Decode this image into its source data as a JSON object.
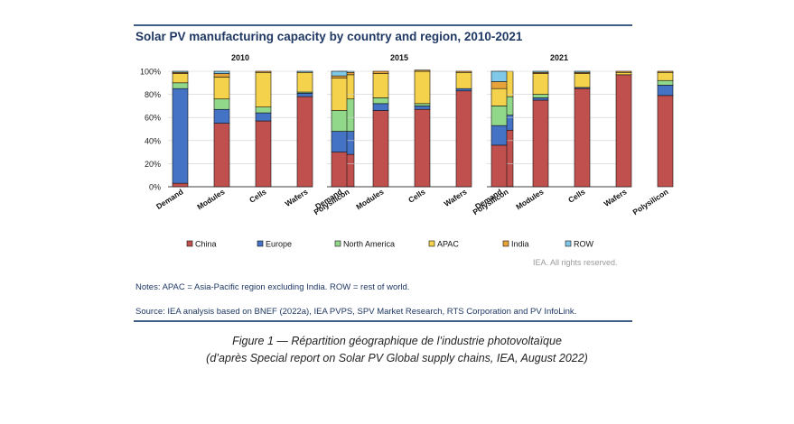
{
  "chart_data": {
    "type": "bar",
    "stacked": true,
    "title": "Solar PV manufacturing capacity by country and region, 2010-2021",
    "categories": [
      "Demand",
      "Modules",
      "Cells",
      "Wafers",
      "Polysilicon"
    ],
    "yticks": [
      "100%",
      "80%",
      "60%",
      "40%",
      "20%",
      "0%"
    ],
    "ylim": [
      0,
      100
    ],
    "legend_position": "bottom",
    "series_meta": [
      {
        "name": "China",
        "color": "#c0504d"
      },
      {
        "name": "Europe",
        "color": "#4472c4"
      },
      {
        "name": "North America",
        "color": "#92d88a"
      },
      {
        "name": "APAC",
        "color": "#f5d24c"
      },
      {
        "name": "India",
        "color": "#e8a23a"
      },
      {
        "name": "ROW",
        "color": "#7fc8e8"
      }
    ],
    "panels": [
      {
        "title": "2010",
        "series": [
          {
            "name": "China",
            "values": [
              3,
              55,
              57,
              78,
              28
            ]
          },
          {
            "name": "Europe",
            "values": [
              82,
              12,
              7,
              3,
              20
            ]
          },
          {
            "name": "North America",
            "values": [
              5,
              9,
              5,
              1,
              28
            ]
          },
          {
            "name": "APAC",
            "values": [
              8,
              19,
              30,
              17,
              21
            ]
          },
          {
            "name": "India",
            "values": [
              1,
              3,
              1,
              0,
              2
            ]
          },
          {
            "name": "ROW",
            "values": [
              1,
              2,
              0,
              1,
              1
            ]
          }
        ]
      },
      {
        "title": "2015",
        "series": [
          {
            "name": "China",
            "values": [
              30,
              66,
              67,
              83,
              49
            ]
          },
          {
            "name": "Europe",
            "values": [
              18,
              6,
              3,
              2,
              13
            ]
          },
          {
            "name": "North America",
            "values": [
              18,
              5,
              2,
              0,
              16
            ]
          },
          {
            "name": "APAC",
            "values": [
              28,
              21,
              28,
              14,
              22
            ]
          },
          {
            "name": "India",
            "values": [
              2,
              2,
              1,
              1,
              0
            ]
          },
          {
            "name": "ROW",
            "values": [
              4,
              0,
              0,
              0,
              0
            ]
          }
        ]
      },
      {
        "title": "2021",
        "series": [
          {
            "name": "China",
            "values": [
              36,
              75,
              85,
              97,
              79
            ]
          },
          {
            "name": "Europe",
            "values": [
              17,
              2,
              1,
              0,
              9
            ]
          },
          {
            "name": "North America",
            "values": [
              17,
              3,
              0,
              0,
              4
            ]
          },
          {
            "name": "APAC",
            "values": [
              15,
              18,
              12,
              2,
              7
            ]
          },
          {
            "name": "India",
            "values": [
              6,
              1,
              1,
              1,
              1
            ]
          },
          {
            "name": "ROW",
            "values": [
              9,
              1,
              1,
              0,
              0
            ]
          }
        ]
      }
    ]
  },
  "notes": "Notes: APAC = Asia-Pacific region excluding India. ROW = rest of world.",
  "source": "Source: IEA analysis based on BNEF (2022a), IEA PVPS, SPV Market Research, RTS Corporation and PV InfoLink.",
  "rights": "IEA. All rights reserved.",
  "caption_line1": "Figure 1 — Répartition géographique de l’industrie photovoltaïque",
  "caption_line2": "(d’après Special report on Solar PV Global supply chains, IEA, August 2022)"
}
